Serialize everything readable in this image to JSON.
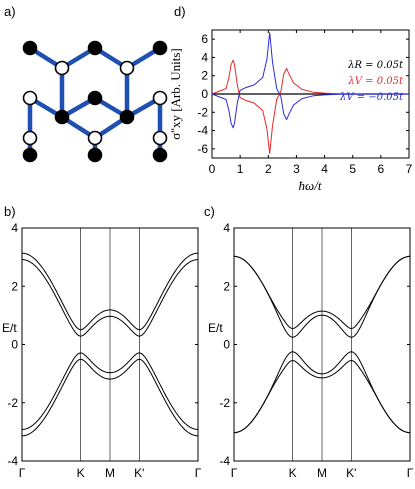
{
  "panels": {
    "a": {
      "label": "a)"
    },
    "b": {
      "label": "b)"
    },
    "c": {
      "label": "c)"
    },
    "d": {
      "label": "d)"
    }
  },
  "lattice": {
    "bond_color": "#1f4fb0",
    "filled_color": "#000000",
    "open_color": "#ffffff"
  },
  "chart_data": [
    {
      "id": "d",
      "type": "line",
      "xlabel": "ħω/t",
      "ylabel": "σ''xy [Arb. Units]",
      "xlim": [
        0,
        7
      ],
      "ylim": [
        -7,
        7
      ],
      "xticks": [
        "0",
        "1",
        "2",
        "3",
        "4",
        "5",
        "6",
        "7"
      ],
      "yticks": [
        "-6",
        "-4",
        "-2",
        "0",
        "2",
        "4",
        "6"
      ],
      "legend_placement": "top-right",
      "legend": [
        {
          "text": "λR = 0.05t",
          "color": "#000000"
        },
        {
          "text": "λV = 0.05t",
          "color": "#e8282a"
        },
        {
          "text": "λV = −0.05t",
          "color": "#2b2bd6"
        }
      ],
      "series": [
        {
          "name": "λR = 0.05t",
          "color": "#000000",
          "x": [
            0,
            7
          ],
          "y": [
            0,
            0
          ]
        },
        {
          "name": "λV = 0.05t",
          "color": "#e8282a",
          "x": [
            0,
            0.5,
            0.6,
            0.68,
            0.75,
            0.8,
            0.9,
            1.0,
            1.2,
            1.5,
            1.8,
            1.95,
            2.05,
            2.15,
            2.3,
            2.45,
            2.55,
            2.65,
            2.75,
            2.9,
            3.2,
            3.6,
            4.0,
            4.5,
            7
          ],
          "y": [
            0,
            0.6,
            1.8,
            3.2,
            3.7,
            3.2,
            1.0,
            -0.4,
            -0.7,
            -1.0,
            -1.8,
            -3.8,
            -6.5,
            -3.5,
            -0.6,
            0.3,
            2.2,
            2.8,
            2.1,
            1.2,
            0.5,
            0.2,
            0.1,
            0.03,
            0
          ]
        },
        {
          "name": "λV = −0.05t",
          "color": "#2b2bd6",
          "x": [
            0,
            0.5,
            0.6,
            0.68,
            0.75,
            0.8,
            0.9,
            1.0,
            1.2,
            1.5,
            1.8,
            1.95,
            2.05,
            2.15,
            2.3,
            2.45,
            2.55,
            2.65,
            2.75,
            2.9,
            3.2,
            3.6,
            4.0,
            4.5,
            7
          ],
          "y": [
            0,
            -0.6,
            -1.8,
            -3.2,
            -3.7,
            -3.2,
            -1.0,
            0.4,
            0.7,
            1.0,
            1.8,
            3.8,
            6.7,
            3.5,
            0.6,
            -0.3,
            -2.2,
            -2.8,
            -2.1,
            -1.2,
            -0.5,
            -0.2,
            -0.1,
            -0.03,
            0
          ]
        }
      ]
    },
    {
      "id": "b",
      "type": "line",
      "ylabel": "E/t",
      "ylim": [
        -4,
        4
      ],
      "yticks": [
        "-4",
        "-2",
        "0",
        "2",
        "4"
      ],
      "xticks": [
        "Γ",
        "K",
        "M",
        "K'",
        "Γ"
      ],
      "kpoints": [
        0,
        1,
        1.5,
        2,
        3
      ],
      "band_model": {
        "t": 1.0,
        "lambda": 0.05,
        "splitting": "spin"
      }
    },
    {
      "id": "c",
      "type": "line",
      "ylabel": "E/t",
      "ylim": [
        -4,
        4
      ],
      "yticks": [
        "-4",
        "-2",
        "0",
        "2",
        "4"
      ],
      "xticks": [
        "Γ",
        "K",
        "M",
        "K'",
        "Γ"
      ],
      "kpoints": [
        0,
        1,
        1.5,
        2,
        3
      ],
      "band_model": {
        "t": 1.0,
        "lambda": 0.05,
        "splitting": "valley"
      }
    }
  ]
}
